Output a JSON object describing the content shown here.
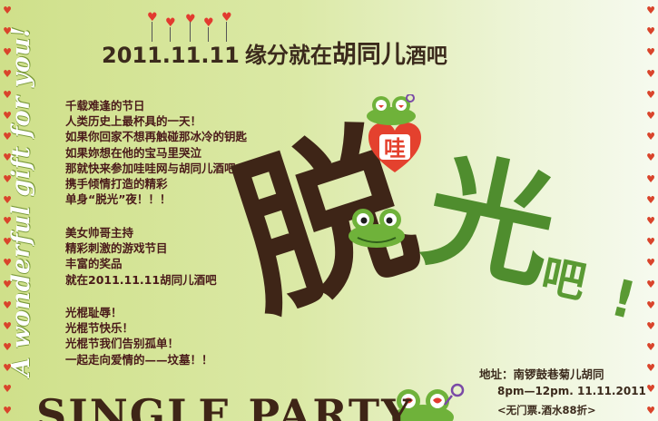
{
  "poster": {
    "side_text": "A wonderful gift for you!",
    "title": {
      "date": "2011.11.11",
      "middle": "缘分就在",
      "highlight": "胡同儿",
      "tail": "酒吧"
    },
    "intro_lines": [
      "千载难逢的节日",
      "人类历史上最杯具的一天！",
      "如果你回家不想再触碰那冰冷的钥匙",
      "如果妳想在他的宝马里哭泣",
      "那就快来参加哇哇网与胡同儿酒吧",
      "携手倾情打造的精彩",
      "单身“脱光”夜！！！"
    ],
    "event_lines": [
      "美女帅哥主持",
      "精彩刺激的游戏节目",
      "丰富的奖品",
      "就在2011.11.11胡同儿酒吧"
    ],
    "slogan_lines": [
      "光棍耻辱！",
      "光棍节快乐！",
      "光棍节我们告别孤单！",
      "一起走向爱情的——坟墓！！"
    ],
    "badge_char": "哇",
    "big_text": {
      "char1": "脱",
      "char2": "光",
      "char3": "吧",
      "excl": "!"
    },
    "address": "地址：南锣鼓巷菊儿胡同",
    "time": "8pm—12pm. 11.11.2011",
    "ticket": "<无门票.酒水88折>",
    "banner": "SINGLE PARTY",
    "colors": {
      "brown": "#3e2517",
      "green": "#4f8d2e",
      "red": "#d9442b"
    }
  }
}
